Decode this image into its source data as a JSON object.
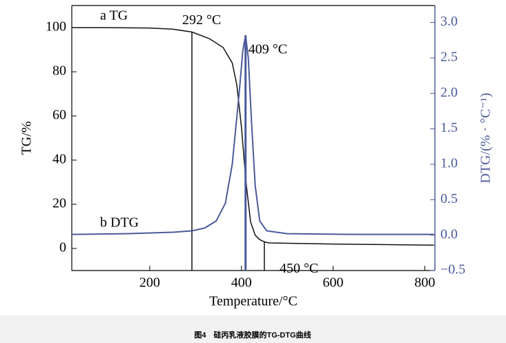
{
  "chart_data": {
    "type": "line",
    "caption": "图4　硅丙乳液胶膜的TG-DTG曲线",
    "x_label": "Temperature/°C",
    "y_label": "TG/%",
    "y2_label": "DTG/(% · °C⁻¹)",
    "xlim": [
      30,
      822
    ],
    "xticks": [
      200,
      400,
      600,
      800
    ],
    "ylim": [
      -10,
      110
    ],
    "yticks": [
      0,
      20,
      40,
      60,
      80,
      100
    ],
    "y2lim": [
      -0.5,
      3.24
    ],
    "y2ticks": [
      {
        "value": -0.5,
        "label": "−0.5"
      },
      {
        "value": 0,
        "label": "0.0"
      },
      0.5,
      {
        "value": 1,
        "label": "1.0"
      },
      1.5,
      {
        "value": 2,
        "label": "2.0"
      },
      2.5,
      {
        "value": 3,
        "label": "3.0"
      }
    ],
    "series": [
      {
        "name": "a TG",
        "color": "#111111",
        "x": [
          30,
          100,
          200,
          250,
          292,
          330,
          360,
          380,
          390,
          400,
          410,
          420,
          430,
          440,
          450,
          460,
          600,
          820
        ],
        "values": [
          100,
          100,
          99.8,
          99.3,
          98,
          95,
          91,
          84,
          74,
          55,
          30,
          12,
          6,
          4,
          3,
          2.5,
          2,
          1.5
        ],
        "annotations": [
          {
            "text": "292 °C",
            "x": 292
          },
          {
            "text": "450 °C",
            "x": 450
          }
        ]
      },
      {
        "name": "b DTG",
        "color": "#4a5a9a",
        "axis": "y2",
        "x": [
          30,
          150,
          250,
          292,
          320,
          345,
          365,
          380,
          395,
          403,
          409,
          415,
          422,
          430,
          440,
          455,
          500,
          650,
          820
        ],
        "values": [
          0.01,
          0.02,
          0.04,
          0.06,
          0.1,
          0.2,
          0.45,
          1.0,
          2.0,
          2.6,
          2.82,
          2.5,
          1.6,
          0.7,
          0.2,
          0.06,
          0.02,
          0.01,
          0.01
        ],
        "annotations": [
          {
            "text": "409 °C",
            "x": 409
          }
        ]
      }
    ]
  }
}
